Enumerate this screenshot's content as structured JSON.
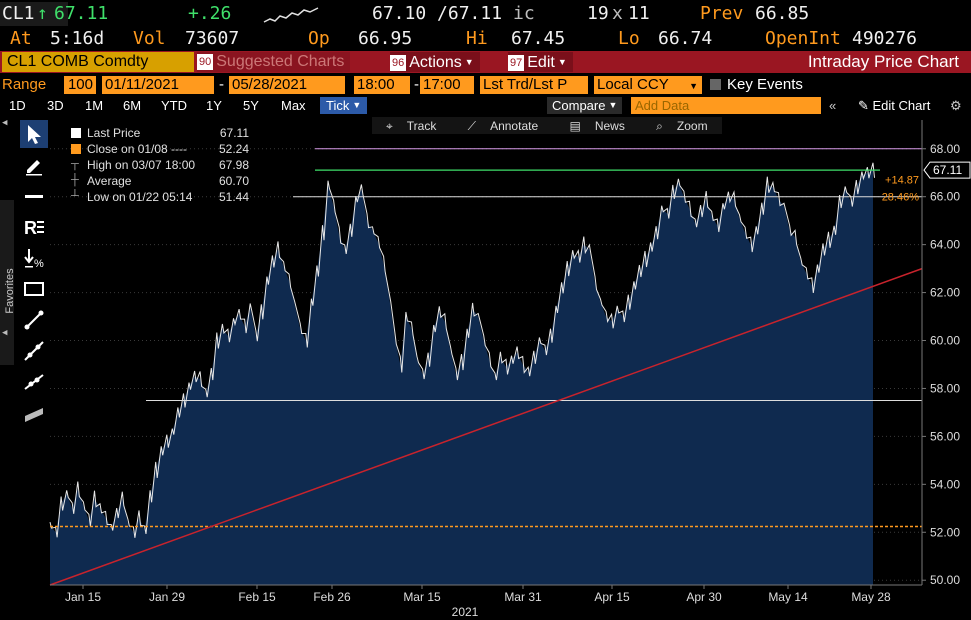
{
  "quote": {
    "ticker": "CL1",
    "last_arrow": "↑",
    "last": "67.11",
    "change": "+.26",
    "bid_ask": "67.10 /67.11",
    "bid_ask_suffix": "ic",
    "size_bid": "19",
    "size_sep": "x",
    "size_ask": "11",
    "prev_label": "Prev",
    "prev_value": "66.85",
    "at_label": "At",
    "at_value": "5:16d",
    "vol_label": "Vol",
    "vol_value": "73607",
    "open_label": "Op",
    "open_value": "66.95",
    "high_label": "Hi",
    "high_value": "67.45",
    "low_label": "Lo",
    "low_value": "66.74",
    "oi_label": "OpenInt",
    "oi_value": "490276"
  },
  "menu": {
    "security": "CL1 COMB Comdty",
    "suggested_num": "90",
    "suggested": "Suggested Charts",
    "actions_num": "96",
    "actions": "Actions",
    "edit_num": "97",
    "edit": "Edit",
    "title": "Intraday Price Chart"
  },
  "range": {
    "label": "Range",
    "count": "100",
    "start_date": "01/11/2021",
    "dash": "-",
    "end_date": "05/28/2021",
    "start_time": "18:00",
    "end_time": "17:00",
    "field": "Lst Trd/Lst P",
    "currency": "Local CCY",
    "key_events": "Key Events"
  },
  "periods": [
    "1D",
    "3D",
    "1M",
    "6M",
    "YTD",
    "1Y",
    "5Y",
    "Max"
  ],
  "period_active": "Tick",
  "toolbar": {
    "compare": "Compare",
    "add_data_placeholder": "Add Data",
    "edit_chart": "Edit Chart"
  },
  "side": {
    "favorites": "Favorites"
  },
  "chart_toolbar": {
    "track": "Track",
    "annotate": "Annotate",
    "news": "News",
    "zoom": "Zoom"
  },
  "legend": [
    {
      "label": "Last Price",
      "value": "67.11",
      "color": "#ffffff"
    },
    {
      "label": "Close on 01/08 ---- ",
      "value": "52.24",
      "color": "#ff9a1e"
    },
    {
      "label": "High on 03/07 18:00",
      "value": "67.98",
      "color": "#cccccc"
    },
    {
      "label": "Average",
      "value": "60.70",
      "color": "#cccccc"
    },
    {
      "label": "Low on 01/22 05:14",
      "value": "51.44",
      "color": "#cccccc"
    }
  ],
  "colors": {
    "area_fill": "#0f2a4f",
    "price_line": "#e8e8e8",
    "trend_line": "#c8232c",
    "close_line": "#ff9a1e",
    "high_line": "#d89be8",
    "last_line": "#3fe06a"
  },
  "chart_data": {
    "type": "area",
    "x_ticks": [
      "Jan 15",
      "Jan 29",
      "Feb 15",
      "Feb 26",
      "Mar 15",
      "Mar 31",
      "Apr 15",
      "Apr 30",
      "May 14",
      "May 28"
    ],
    "x_year": "2021",
    "y_ticks": [
      "50.00",
      "52.00",
      "54.00",
      "56.00",
      "58.00",
      "60.00",
      "62.00",
      "64.00",
      "66.00",
      "68.00"
    ],
    "ylim": [
      49.8,
      69.2
    ],
    "last_price_tag": "67.11",
    "change_tag": "+14.87",
    "change_pct_tag": "28.46%",
    "reference_lines": {
      "high": 68.0,
      "last": 67.11,
      "prior_resistance": 66.0,
      "support": 57.5,
      "prev_close": 52.24
    },
    "trend_line": {
      "from": [
        0,
        49.8
      ],
      "to": [
        1,
        63.0
      ]
    },
    "series": [
      {
        "values": [
          52.3,
          52.0,
          53.2,
          53.6,
          53.0,
          53.8,
          53.1,
          52.5,
          53.4,
          53.0,
          52.6,
          52.2,
          52.8,
          53.4,
          52.4,
          52.0,
          52.6,
          52.1,
          53.5,
          54.6,
          55.4,
          55.8,
          56.2,
          57.0,
          57.5,
          58.1,
          58.5,
          58.4,
          57.8,
          58.6,
          60.0,
          60.5,
          60.2,
          60.8,
          61.1,
          60.6,
          61.4,
          60.2,
          61.2,
          62.5,
          63.3,
          63.8,
          63.1,
          62.5,
          61.5,
          60.5,
          60.0,
          61.6,
          62.9,
          64.5,
          66.5,
          65.6,
          64.4,
          63.8,
          64.6,
          65.9,
          66.3,
          65.0,
          64.6,
          64.1,
          63.2,
          61.8,
          60.1,
          59.0,
          61.0,
          60.5,
          59.2,
          58.6,
          59.2,
          60.5,
          61.2,
          60.8,
          59.6,
          58.6,
          59.1,
          60.3,
          61.3,
          61.0,
          60.0,
          59.2,
          58.5,
          59.3,
          58.9,
          59.2,
          59.5,
          59.0,
          58.7,
          59.3,
          60.0,
          59.6,
          60.2,
          61.3,
          62.2,
          63.0,
          63.6,
          63.5,
          64.0,
          63.8,
          62.4,
          61.6,
          61.0,
          60.8,
          61.3,
          61.0,
          61.6,
          62.3,
          62.9,
          63.4,
          63.9,
          64.5,
          65.5,
          65.3,
          66.2,
          66.6,
          66.0,
          65.5,
          64.9,
          65.4,
          65.9,
          65.2,
          64.8,
          65.6,
          66.0,
          65.9,
          65.1,
          64.5,
          64.0,
          64.6,
          65.5,
          66.5,
          66.4,
          65.9,
          65.6,
          64.6,
          64.3,
          63.3,
          62.8,
          62.3,
          63.0,
          63.8,
          64.2,
          64.6,
          65.8,
          66.3,
          65.8,
          66.4,
          66.9,
          67.0,
          67.1
        ]
      }
    ]
  }
}
